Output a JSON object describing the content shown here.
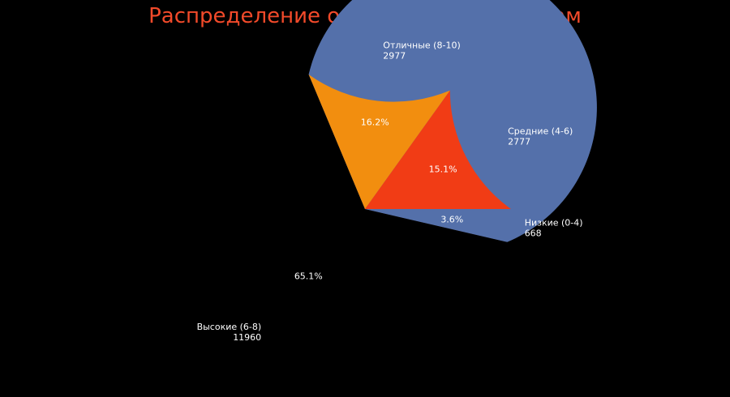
{
  "chart_data": {
    "type": "pie",
    "title": "Распределение оценок по диапазонам",
    "slices": [
      {
        "label": "Низкие (0-4)",
        "value": 668,
        "percent_text": "3.6%",
        "color": "#4a3d3d"
      },
      {
        "label": "Высокие (6-8)",
        "value": 11960,
        "percent_text": "65.1%",
        "color": "#5470aa"
      },
      {
        "label": "Отличные (8-10)",
        "value": 2977,
        "percent_text": "16.2%",
        "color": "#f28e0f"
      },
      {
        "label": "Средние (4-6)",
        "value": 2777,
        "percent_text": "15.1%",
        "color": "#f13c15"
      }
    ],
    "start_angle_deg": 0,
    "direction": "counterclockwise",
    "legend": "none"
  },
  "colors": {
    "background": "#000000",
    "title": "#f24a2a",
    "label_text": "#ffffff"
  }
}
